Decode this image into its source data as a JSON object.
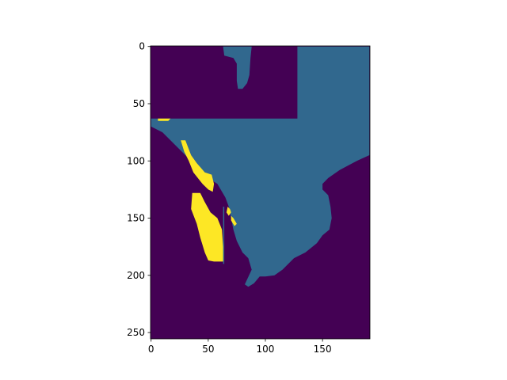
{
  "chart_data": {
    "type": "heatmap",
    "title": "",
    "xlabel": "",
    "ylabel": "",
    "xlim": [
      0,
      191
    ],
    "ylim": [
      255,
      0
    ],
    "x_ticks": [
      "0",
      "50",
      "100",
      "150"
    ],
    "x_tick_values": [
      0,
      50,
      100,
      150
    ],
    "y_ticks": [
      "0",
      "50",
      "100",
      "150",
      "200",
      "250"
    ],
    "y_tick_values": [
      0,
      50,
      100,
      150,
      200,
      250
    ],
    "grid": false,
    "legend": "none",
    "colormap": "viridis",
    "classes": [
      {
        "value": 0,
        "color": "#440154"
      },
      {
        "value": 1,
        "color": "#31688e"
      },
      {
        "value": 2,
        "color": "#fde725"
      }
    ],
    "regions": [
      {
        "class": 1,
        "polygon": [
          [
            128,
            0
          ],
          [
            191,
            0
          ],
          [
            191,
            95
          ],
          [
            180,
            100
          ],
          [
            165,
            108
          ],
          [
            155,
            115
          ],
          [
            150,
            120
          ],
          [
            150,
            125
          ],
          [
            155,
            130
          ],
          [
            157,
            140
          ],
          [
            158,
            150
          ],
          [
            156,
            160
          ],
          [
            150,
            165
          ],
          [
            145,
            172
          ],
          [
            135,
            180
          ],
          [
            125,
            185
          ],
          [
            115,
            195
          ],
          [
            108,
            200
          ],
          [
            100,
            201
          ],
          [
            95,
            201
          ],
          [
            90,
            207
          ],
          [
            85,
            210
          ],
          [
            82,
            208
          ],
          [
            88,
            195
          ],
          [
            85,
            185
          ],
          [
            80,
            180
          ],
          [
            75,
            170
          ],
          [
            72,
            160
          ],
          [
            70,
            150
          ],
          [
            68,
            140
          ],
          [
            65,
            132
          ],
          [
            58,
            120
          ],
          [
            50,
            115
          ],
          [
            40,
            105
          ],
          [
            30,
            95
          ],
          [
            20,
            85
          ],
          [
            10,
            75
          ],
          [
            0,
            70
          ],
          [
            0,
            63
          ],
          [
            128,
            63
          ]
        ]
      },
      {
        "class": 1,
        "polygon": [
          [
            63,
            0
          ],
          [
            88,
            0
          ],
          [
            87,
            10
          ],
          [
            86,
            25
          ],
          [
            84,
            32
          ],
          [
            80,
            37
          ],
          [
            76,
            37
          ],
          [
            75,
            30
          ],
          [
            75,
            15
          ],
          [
            72,
            10
          ],
          [
            64,
            8
          ]
        ]
      },
      {
        "class": 1,
        "polygon": [
          [
            63,
            140
          ],
          [
            64,
            140
          ],
          [
            64,
            190
          ],
          [
            63,
            190
          ]
        ]
      },
      {
        "class": 2,
        "polygon": [
          [
            26,
            82
          ],
          [
            30,
            82
          ],
          [
            35,
            95
          ],
          [
            40,
            102
          ],
          [
            47,
            110
          ],
          [
            53,
            112
          ],
          [
            55,
            120
          ],
          [
            54,
            127
          ],
          [
            50,
            125
          ],
          [
            45,
            120
          ],
          [
            37,
            110
          ],
          [
            33,
            100
          ],
          [
            29,
            92
          ]
        ]
      },
      {
        "class": 2,
        "polygon": [
          [
            36,
            128
          ],
          [
            43,
            128
          ],
          [
            47,
            136
          ],
          [
            52,
            145
          ],
          [
            58,
            150
          ],
          [
            62,
            160
          ],
          [
            63,
            175
          ],
          [
            63,
            188
          ],
          [
            55,
            188
          ],
          [
            50,
            187
          ],
          [
            47,
            180
          ],
          [
            43,
            167
          ],
          [
            40,
            155
          ],
          [
            35,
            142
          ]
        ]
      },
      {
        "class": 2,
        "polygon": [
          [
            6,
            63
          ],
          [
            17,
            63
          ],
          [
            15,
            65
          ],
          [
            6,
            65
          ]
        ]
      },
      {
        "class": 2,
        "polygon": [
          [
            67,
            140
          ],
          [
            69,
            142
          ],
          [
            70,
            145
          ],
          [
            68,
            148
          ],
          [
            66,
            145
          ]
        ]
      },
      {
        "class": 2,
        "polygon": [
          [
            70,
            148
          ],
          [
            72,
            150
          ],
          [
            75,
            155
          ],
          [
            73,
            157
          ],
          [
            70,
            152
          ]
        ]
      }
    ]
  }
}
